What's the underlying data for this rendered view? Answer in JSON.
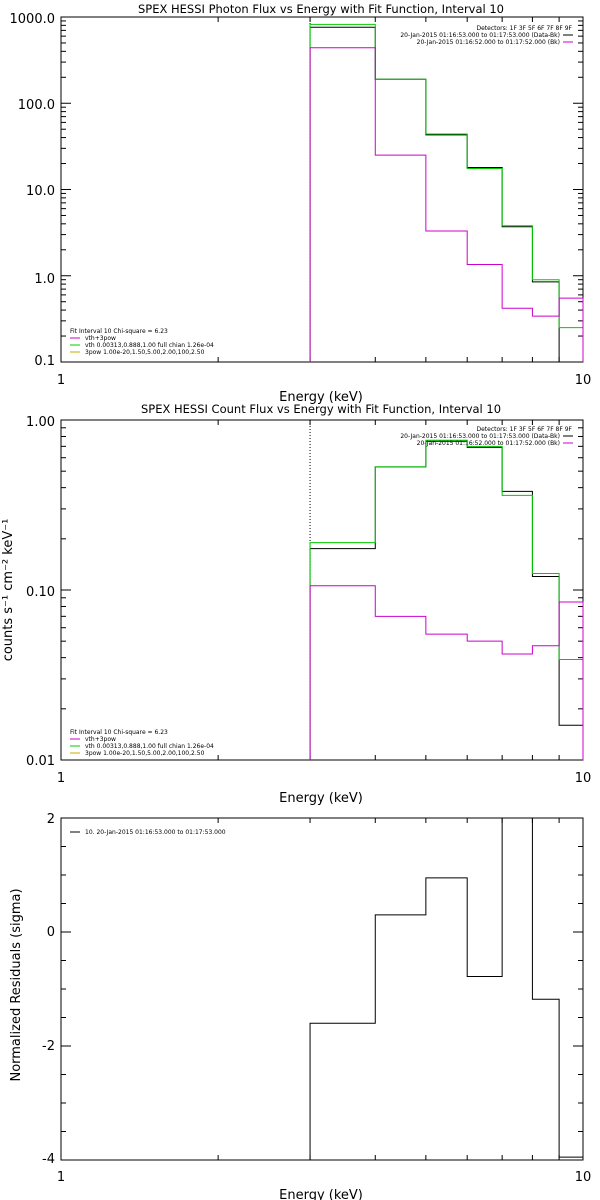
{
  "chart_data": [
    {
      "type": "line",
      "step": true,
      "title": "SPEX HESSI Photon Flux vs Energy with Fit Function, Interval 10",
      "xlabel": "Energy (keV)",
      "ylabel": "",
      "xscale": "log",
      "yscale": "log",
      "xlim": [
        1,
        10
      ],
      "ylim": [
        0.1,
        1000
      ],
      "xticklabels": [
        "1",
        "10"
      ],
      "yticklabels": [
        "0.1",
        "1.0",
        "10.0",
        "100.0",
        "1000.0"
      ],
      "energy_edges": [
        3,
        4,
        5,
        6,
        7,
        8,
        9,
        10
      ],
      "vline_x": 3,
      "series": [
        {
          "color": "#000000",
          "values": [
            760,
            190,
            43,
            18,
            3.7,
            0.85,
            0.1
          ]
        },
        {
          "color": "#00cc00",
          "values": [
            820,
            190,
            44,
            17.5,
            3.8,
            0.9,
            0.25
          ]
        },
        {
          "color": "#cc00cc",
          "values": [
            440,
            25,
            3.3,
            1.35,
            0.42,
            0.34,
            0.55
          ]
        }
      ],
      "legend_right": {
        "header": "Detectors: 1F 3F 5F 6F 7F 8F 9F",
        "entries": [
          {
            "text": "20-Jan-2015 01:16:53.000 to 01:17:53.000 (Data-Bk)",
            "color": "#000000"
          },
          {
            "text": "20-Jan-2015 01:16:52.000 to 01:17:52.000 (Bk)",
            "color": "#cc00cc"
          }
        ]
      },
      "legend_left": {
        "header": "Fit Interval 10   Chi-square = 6.23",
        "entries": [
          {
            "text": "vth+3pow",
            "color": "#cc00cc"
          },
          {
            "text": "vth 0.00313,0.888,1.00   full chian 1.26e-04",
            "color": "#00cc00"
          },
          {
            "text": "3pow 1.00e-20,1.50,5.00,2.00,100,2.50",
            "color": "#ccaa00"
          }
        ]
      },
      "legend_placement": "top-right / bottom-left"
    },
    {
      "type": "line",
      "step": true,
      "title": "SPEX HESSI Count Flux vs Energy with Fit Function, Interval 10",
      "xlabel": "Energy (keV)",
      "ylabel": "counts s⁻¹ cm⁻² keV⁻¹",
      "xscale": "log",
      "yscale": "log",
      "xlim": [
        1,
        10
      ],
      "ylim": [
        0.01,
        1.0
      ],
      "xticklabels": [
        "1",
        "10"
      ],
      "yticklabels": [
        "0.01",
        "0.10",
        "1.00"
      ],
      "energy_edges": [
        3,
        4,
        5,
        6,
        7,
        8,
        9,
        10
      ],
      "vline_x": 3,
      "series": [
        {
          "color": "#000000",
          "values": [
            0.175,
            0.53,
            0.75,
            0.69,
            0.38,
            0.12,
            0.016
          ]
        },
        {
          "color": "#00cc00",
          "values": [
            0.19,
            0.53,
            0.76,
            0.7,
            0.36,
            0.125,
            0.039
          ]
        },
        {
          "color": "#cc00cc",
          "values": [
            0.106,
            0.07,
            0.055,
            0.05,
            0.042,
            0.047,
            0.085
          ]
        }
      ],
      "legend_right": {
        "header": "Detectors: 1F 3F 5F 6F 7F 8F 9F",
        "entries": [
          {
            "text": "20-Jan-2015 01:16:53.000 to 01:17:53.000 (Data-Bk)",
            "color": "#000000"
          },
          {
            "text": "20-Jan-2015 01:16:52.000 to 01:17:52.000 (Bk)",
            "color": "#cc00cc"
          }
        ]
      },
      "legend_left": {
        "header": "Fit Interval 10   Chi-square = 6.23",
        "entries": [
          {
            "text": "vth+3pow",
            "color": "#cc00cc"
          },
          {
            "text": "vth 0.00313,0.888,1.00   full chian 1.26e-04",
            "color": "#00cc00"
          },
          {
            "text": "3pow 1.00e-20,1.50,5.00,2.00,100,2.50",
            "color": "#ccaa00"
          }
        ]
      },
      "legend_placement": "top-right / bottom-left"
    },
    {
      "type": "line",
      "step": true,
      "title": "",
      "xlabel": "Energy (keV)",
      "ylabel": "Normalized Residuals (sigma)",
      "xscale": "log",
      "yscale": "linear",
      "xlim": [
        1,
        10
      ],
      "ylim": [
        -4,
        2
      ],
      "xticklabels": [
        "1",
        "10"
      ],
      "yticklabels": [
        "-4",
        "-2",
        "0",
        "2"
      ],
      "energy_edges": [
        3,
        4,
        5,
        6,
        7,
        8,
        9,
        10
      ],
      "series": [
        {
          "color": "#000000",
          "values": [
            -1.6,
            0.3,
            0.95,
            -0.78,
            2.0,
            -1.18,
            -3.95
          ]
        }
      ],
      "legend_left": {
        "header": "",
        "entries": [
          {
            "text": "10. 20-Jan-2015 01:16:53.000 to 01:17:53.000",
            "color": "#000000"
          }
        ]
      },
      "legend_placement": "top-left"
    }
  ]
}
